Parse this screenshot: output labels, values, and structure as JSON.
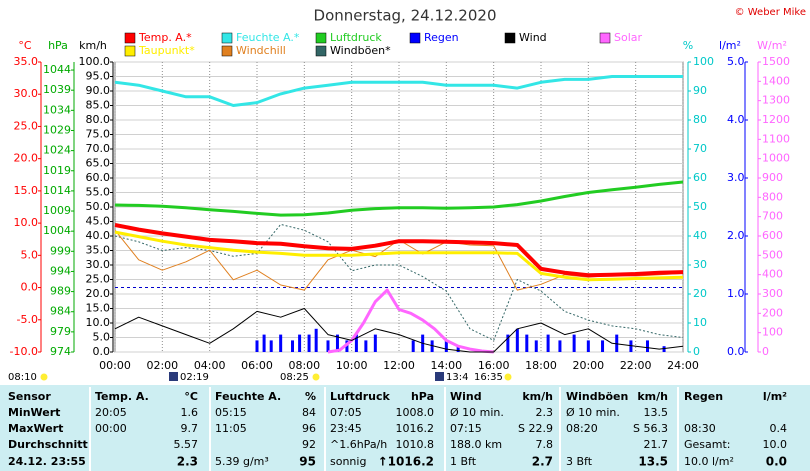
{
  "chart_data": {
    "type": "line",
    "title": "Donnerstag, 24.12.2020",
    "copyright": "© Weber Mike",
    "xlim": [
      0,
      24
    ],
    "xticks": [
      {
        "value": 0,
        "label": "00:00"
      },
      {
        "value": 2,
        "label": "02:00"
      },
      {
        "value": 4,
        "label": "04:00"
      },
      {
        "value": 6,
        "label": "06:00"
      },
      {
        "value": 8,
        "label": "08:00"
      },
      {
        "value": 10,
        "label": "10:00"
      },
      {
        "value": 12,
        "label": "12:00"
      },
      {
        "value": 14,
        "label": "14:00"
      },
      {
        "value": 16,
        "label": "16:00"
      },
      {
        "value": 18,
        "label": "18:00"
      },
      {
        "value": 20,
        "label": "20:00"
      },
      {
        "value": 22,
        "label": "22:00"
      },
      {
        "value": 24,
        "label": "24:00"
      }
    ],
    "grid": true,
    "axes": {
      "temp": {
        "label": "°C",
        "color": "#ff0000",
        "ylim": [
          -10,
          35
        ],
        "yticks": [
          {
            "value": 35,
            "label": "35.0"
          },
          {
            "value": 30,
            "label": "30.0"
          },
          {
            "value": 25,
            "label": "25.0"
          },
          {
            "value": 20,
            "label": "20.0"
          },
          {
            "value": 15,
            "label": "15.0"
          },
          {
            "value": 10,
            "label": "10.0"
          },
          {
            "value": 5,
            "label": "5.0"
          },
          {
            "value": 0,
            "label": "0.0"
          },
          {
            "value": -5,
            "label": "-5.0"
          },
          {
            "value": -10,
            "label": "-10.0"
          }
        ]
      },
      "hpa": {
        "label": "hPa",
        "color": "#00aa00",
        "ylim": [
          974,
          1046
        ],
        "yticks": [
          1044,
          1039,
          1034,
          1029,
          1024,
          1019,
          1014,
          1009,
          1004,
          999,
          994,
          989,
          984,
          979,
          974
        ]
      },
      "kmh": {
        "label": "km/h",
        "color": "#000000",
        "ylim": [
          0,
          100
        ],
        "yticks": [
          {
            "value": 100,
            "label": "100.0"
          },
          {
            "value": 95,
            "label": "95.0"
          },
          {
            "value": 90,
            "label": "90.0"
          },
          {
            "value": 85,
            "label": "85.0"
          },
          {
            "value": 80,
            "label": "80.0"
          },
          {
            "value": 75,
            "label": "75.0"
          },
          {
            "value": 70,
            "label": "70.0"
          },
          {
            "value": 65,
            "label": "65.0"
          },
          {
            "value": 60,
            "label": "60.0"
          },
          {
            "value": 55,
            "label": "55.0"
          },
          {
            "value": 50,
            "label": "50.0"
          },
          {
            "value": 45,
            "label": "45.0"
          },
          {
            "value": 40,
            "label": "40.0"
          },
          {
            "value": 35,
            "label": "35.0"
          },
          {
            "value": 30,
            "label": "30.0"
          },
          {
            "value": 25,
            "label": "25.0"
          },
          {
            "value": 20,
            "label": "20.0"
          },
          {
            "value": 15,
            "label": "15.0"
          },
          {
            "value": 10,
            "label": "10.0"
          },
          {
            "value": 5,
            "label": "5.0"
          },
          {
            "value": 0,
            "label": "0.0"
          }
        ]
      },
      "hum": {
        "label": "%",
        "color": "#00c8c8",
        "ylim": [
          0,
          100
        ],
        "yticks": [
          100,
          90,
          80,
          70,
          60,
          50,
          40,
          30,
          20,
          10,
          0
        ]
      },
      "rain": {
        "label": "l/m²",
        "color": "#0000ff",
        "ylim": [
          0,
          5
        ],
        "yticks": [
          {
            "value": 5,
            "label": "5.0"
          },
          {
            "value": 4,
            "label": "4.0"
          },
          {
            "value": 3,
            "label": "3.0"
          },
          {
            "value": 2,
            "label": "2.0"
          },
          {
            "value": 1,
            "label": "1.0"
          },
          {
            "value": 0,
            "label": "0.0"
          }
        ]
      },
      "solar": {
        "label": "W/m²",
        "color": "#ff66ff",
        "ylim": [
          0,
          1500
        ],
        "yticks": [
          1500,
          1400,
          1300,
          1200,
          1100,
          1000,
          900,
          800,
          700,
          600,
          500,
          400,
          300,
          200,
          100,
          0
        ]
      }
    },
    "x": [
      0,
      1,
      2,
      3,
      4,
      5,
      6,
      7,
      8,
      9,
      10,
      11,
      12,
      13,
      14,
      15,
      16,
      17,
      18,
      19,
      20,
      21,
      22,
      23,
      24
    ],
    "series": [
      {
        "name": "Temp. A.*",
        "color": "#ff0000",
        "axis": "temp",
        "values": [
          9.7,
          9.0,
          8.4,
          7.9,
          7.4,
          7.2,
          6.9,
          6.8,
          6.4,
          6.1,
          6.0,
          6.5,
          7.2,
          7.2,
          7.1,
          7.0,
          6.9,
          6.6,
          2.9,
          2.3,
          1.9,
          2.0,
          2.1,
          2.3,
          2.4
        ]
      },
      {
        "name": "Feuchte A.*",
        "color": "#33e6e6",
        "axis": "hum",
        "values": [
          93,
          92,
          90,
          88,
          88,
          85,
          86,
          89,
          91,
          92,
          93,
          93,
          93,
          93,
          92,
          92,
          92,
          91,
          93,
          94,
          94,
          95,
          95,
          95,
          95
        ]
      },
      {
        "name": "Luftdruck",
        "color": "#22cc22",
        "axis": "hpa",
        "values": [
          1010.5,
          1010.4,
          1010.2,
          1009.8,
          1009.3,
          1008.9,
          1008.4,
          1008.0,
          1008.1,
          1008.5,
          1009.2,
          1009.6,
          1009.8,
          1009.8,
          1009.7,
          1009.8,
          1010.0,
          1010.6,
          1011.5,
          1012.6,
          1013.6,
          1014.3,
          1014.9,
          1015.6,
          1016.2
        ]
      },
      {
        "name": "Regen",
        "color": "#0000ff",
        "axis": "rain",
        "style": "bar",
        "x": [
          6.0,
          6.3,
          6.6,
          7.0,
          7.5,
          7.8,
          8.2,
          8.5,
          9.0,
          9.4,
          9.8,
          10.2,
          10.6,
          11.0,
          12.6,
          13.0,
          13.4,
          14.0,
          14.5,
          16.6,
          17.0,
          17.4,
          17.8,
          18.3,
          18.8,
          19.4,
          20.0,
          20.6,
          21.2,
          21.8,
          22.5,
          23.2
        ],
        "values": [
          0.2,
          0.3,
          0.2,
          0.3,
          0.2,
          0.3,
          0.3,
          0.4,
          0.2,
          0.3,
          0.2,
          0.3,
          0.2,
          0.3,
          0.2,
          0.3,
          0.2,
          0.2,
          0.1,
          0.3,
          0.4,
          0.3,
          0.2,
          0.3,
          0.2,
          0.3,
          0.2,
          0.2,
          0.3,
          0.2,
          0.2,
          0.1
        ]
      },
      {
        "name": "Wind",
        "color": "#000000",
        "axis": "kmh",
        "values": [
          8,
          12,
          9,
          6,
          3,
          8,
          14,
          12,
          15,
          6,
          4,
          8,
          6,
          3,
          1,
          0,
          0,
          8,
          10,
          6,
          8,
          3,
          2,
          1,
          2
        ]
      },
      {
        "name": "Solar",
        "color": "#ff66ff",
        "axis": "solar",
        "x": [
          9,
          9.5,
          10,
          10.5,
          11,
          11.5,
          12,
          12.5,
          13,
          13.5,
          14,
          14.5,
          15,
          15.5,
          16
        ],
        "values": [
          0,
          10,
          60,
          150,
          260,
          320,
          220,
          200,
          165,
          120,
          60,
          30,
          15,
          5,
          0
        ]
      },
      {
        "name": "Taupunkt*",
        "color": "#ffee00",
        "axis": "temp",
        "values": [
          8.6,
          7.9,
          7.2,
          6.6,
          6.2,
          5.8,
          5.5,
          5.3,
          5.0,
          5.0,
          5.0,
          5.2,
          5.4,
          5.4,
          5.4,
          5.4,
          5.4,
          5.3,
          2.2,
          1.6,
          1.2,
          1.3,
          1.4,
          1.5,
          1.6
        ]
      },
      {
        "name": "Windchill",
        "color": "#e08020",
        "axis": "temp",
        "values": [
          8.9,
          4.3,
          2.7,
          4.0,
          5.8,
          1.2,
          2.7,
          0.4,
          -0.4,
          4.3,
          5.8,
          4.8,
          7.4,
          5.2,
          7.1,
          6.6,
          6.5,
          -0.4,
          0.5,
          2.0,
          1.6,
          1.9,
          1.8,
          2.0,
          2.2
        ]
      },
      {
        "name": "Windböen*",
        "color": "#336666",
        "axis": "kmh",
        "style": "dotted",
        "values": [
          40,
          38,
          35,
          36,
          35,
          33,
          34,
          44,
          42,
          38,
          28,
          30,
          30,
          26,
          21,
          8,
          4,
          25,
          21,
          14,
          11,
          9,
          8,
          6,
          5
        ]
      }
    ],
    "astro": [
      "08:10",
      "02:19",
      "08:25",
      "13:4",
      "16:35"
    ]
  },
  "table": {
    "header": [
      "Sensor",
      "Temp. A.",
      "°C",
      "Feuchte A.",
      "%",
      "Luftdruck",
      "hPa",
      "Wind",
      "km/h",
      "Windböen",
      "km/h",
      "Regen",
      "l/m²"
    ],
    "rows": [
      [
        "MinWert",
        "20:05",
        "1.6",
        "05:15",
        "84",
        "07:05",
        "1008.0",
        "Ø 10 min.",
        "2.3",
        "Ø 10 min.",
        "13.5",
        null,
        null
      ],
      [
        "MaxWert",
        "00:00",
        "9.7",
        "11:05",
        "96",
        "23:45",
        "1016.2",
        "07:15",
        "S 22.9",
        "08:20",
        "S 56.3",
        "08:30",
        "0.4"
      ],
      [
        "Durchschnitt",
        null,
        "5.57",
        null,
        "92",
        "^1.6hPa/h",
        "1010.8",
        "188.0 km",
        "7.8",
        null,
        "21.7",
        "Gesamt:",
        "10.0"
      ],
      [
        "24.12. 23:55",
        null,
        "2.3",
        "5.39 g/m³",
        "95",
        "sonnig",
        "↑1016.2",
        "1 Bft",
        "2.7",
        "3 Bft",
        "13.5",
        "10.0 l/m²",
        "0.0"
      ]
    ]
  }
}
